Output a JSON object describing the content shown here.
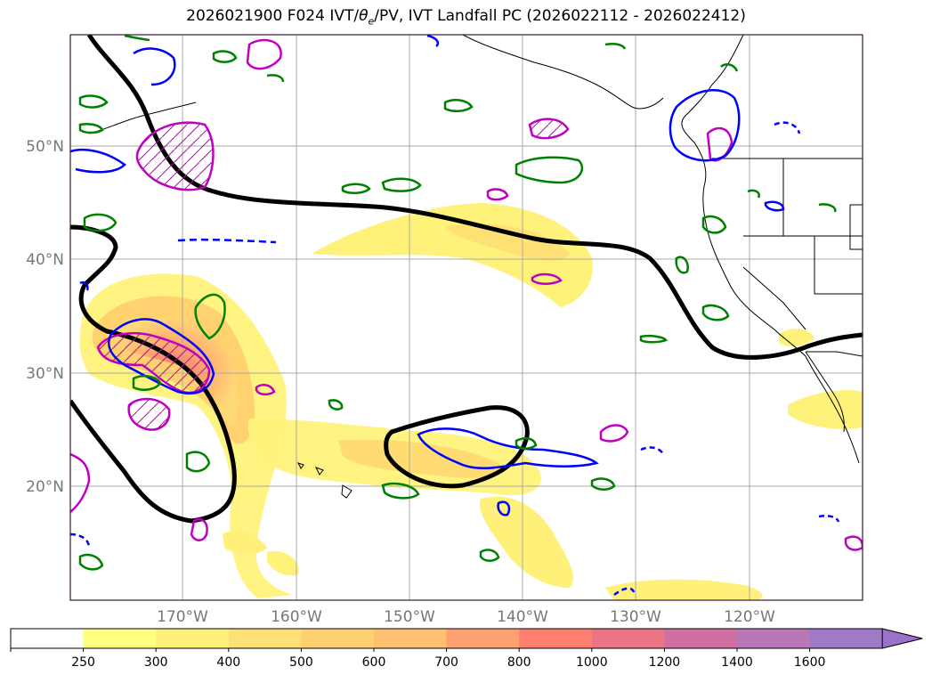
{
  "title_prefix": "2026021900 F024 IVT/",
  "title_theta": "θ",
  "title_sub": "e",
  "title_suffix": "/PV, IVT Landfall PC (2026022112 - 2026022412)",
  "map": {
    "lat_labels": [
      "50°N",
      "40°N",
      "30°N",
      "20°N"
    ],
    "lon_labels": [
      "170°W",
      "160°W",
      "150°W",
      "140°W",
      "130°W",
      "120°W"
    ]
  },
  "colorbar": {
    "levels": [
      "250",
      "300",
      "400",
      "500",
      "600",
      "700",
      "800",
      "1000",
      "1200",
      "1400",
      "1600"
    ],
    "colors": [
      "#ffffff",
      "#ffff80",
      "#fff07a",
      "#ffe075",
      "#ffd070",
      "#ffc070",
      "#ffa070",
      "#ff8070",
      "#ec7585",
      "#d070a0",
      "#b878b8",
      "#a07ac8"
    ]
  },
  "colors": {
    "ivt_fill": "#ffe070",
    "ivt_core": "#f07070",
    "theta_e_contour": "#000000",
    "pv_positive": "#0000ff",
    "pv_green": "#008000",
    "pv_magenta": "#c000c0"
  }
}
